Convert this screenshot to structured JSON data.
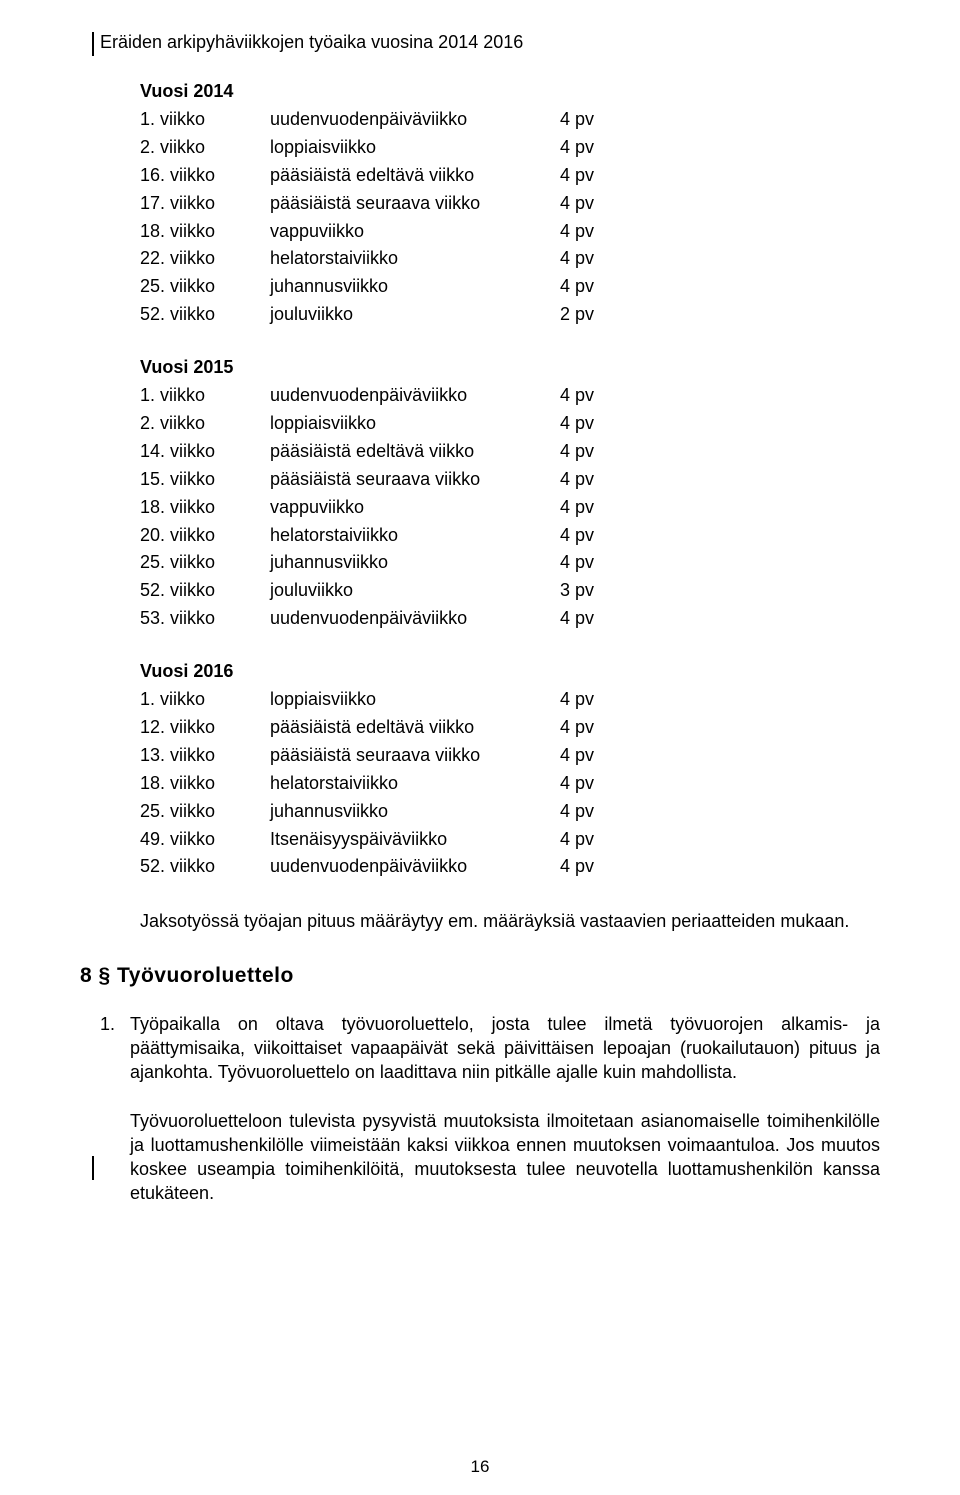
{
  "title": "Eräiden arkipyhäviikkojen työaika vuosina 2014 2016",
  "years": [
    {
      "label": "Vuosi 2014",
      "rows": [
        {
          "c1": "1. viikko",
          "c2": "uudenvuodenpäiväviikko",
          "c3": "4 pv"
        },
        {
          "c1": "2. viikko",
          "c2": "loppiaisviikko",
          "c3": "4 pv"
        },
        {
          "c1": "16. viikko",
          "c2": "pääsiäistä edeltävä viikko",
          "c3": "4 pv"
        },
        {
          "c1": "17. viikko",
          "c2": "pääsiäistä seuraava viikko",
          "c3": "4 pv"
        },
        {
          "c1": "18. viikko",
          "c2": "vappuviikko",
          "c3": "4 pv"
        },
        {
          "c1": "22. viikko",
          "c2": "helatorstaiviikko",
          "c3": "4 pv"
        },
        {
          "c1": "25. viikko",
          "c2": "juhannusviikko",
          "c3": "4 pv"
        },
        {
          "c1": "52. viikko",
          "c2": "jouluviikko",
          "c3": "2 pv"
        }
      ]
    },
    {
      "label": "Vuosi 2015",
      "rows": [
        {
          "c1": "1. viikko",
          "c2": "uudenvuodenpäiväviikko",
          "c3": "4 pv"
        },
        {
          "c1": "2. viikko",
          "c2": "loppiaisviikko",
          "c3": "4 pv"
        },
        {
          "c1": "14. viikko",
          "c2": "pääsiäistä edeltävä viikko",
          "c3": "4 pv"
        },
        {
          "c1": "15. viikko",
          "c2": "pääsiäistä seuraava viikko",
          "c3": "4 pv"
        },
        {
          "c1": "18. viikko",
          "c2": "vappuviikko",
          "c3": "4 pv"
        },
        {
          "c1": "20. viikko",
          "c2": "helatorstaiviikko",
          "c3": "4 pv"
        },
        {
          "c1": "25. viikko",
          "c2": "juhannusviikko",
          "c3": "4 pv"
        },
        {
          "c1": "52. viikko",
          "c2": "jouluviikko",
          "c3": "3 pv"
        },
        {
          "c1": "53. viikko",
          "c2": "uudenvuodenpäiväviikko",
          "c3": "4 pv"
        }
      ]
    },
    {
      "label": "Vuosi 2016",
      "rows": [
        {
          "c1": "1. viikko",
          "c2": "loppiaisviikko",
          "c3": "4 pv"
        },
        {
          "c1": "12. viikko",
          "c2": "pääsiäistä edeltävä viikko",
          "c3": "4 pv"
        },
        {
          "c1": "13. viikko",
          "c2": "pääsiäistä seuraava viikko",
          "c3": "4 pv"
        },
        {
          "c1": "18. viikko",
          "c2": "helatorstaiviikko",
          "c3": "4 pv"
        },
        {
          "c1": "25. viikko",
          "c2": "juhannusviikko",
          "c3": "4 pv"
        },
        {
          "c1": "49. viikko",
          "c2": "Itsenäisyyspäiväviikko",
          "c3": "4 pv"
        },
        {
          "c1": "52. viikko",
          "c2": "uudenvuodenpäiväviikko",
          "c3": "4 pv"
        }
      ]
    }
  ],
  "jakso_para": "Jaksotyössä työajan pituus määräytyy em. määräyksiä vastaavien periaatteiden mukaan.",
  "section_heading": "8 §  Työvuoroluettelo",
  "num_para_1a": "Työpaikalla on oltava työvuoroluettelo, josta tulee ilmetä työvuorojen alkamis- ja päättymisaika, viikoittaiset vapaapäivät sekä päivittäisen lepoajan (ruokailutauon) pituus ja ajankohta. Työvuoroluettelo on laadittava niin pitkälle ajalle kuin mahdollista.",
  "num_para_1_num": "1.",
  "num_para_1b": "Työvuoroluetteloon tulevista pysyvistä muutoksista ilmoitetaan asianomaiselle toimihenkilölle ja luottamushenkilölle viimeistään kaksi viikkoa ennen muutoksen voimaantuloa. Jos muutos koskee useampia toimihenkilöitä, muutoksesta tulee neuvotella luottamushenkilön kanssa etukäteen.",
  "page_number": "16"
}
